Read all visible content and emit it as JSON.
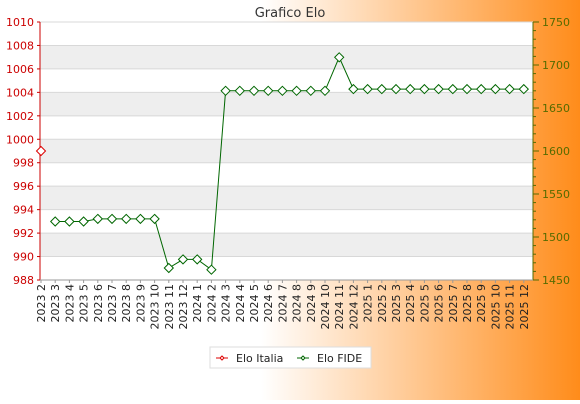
{
  "colors": {
    "bg_left": "#ffffff",
    "bg_right": "#ff8c1a",
    "band": "#eeeeee",
    "grid": "#d8d8d8",
    "left_axis": "#cc0000",
    "right_axis": "#556b00",
    "italia": "#dd0000",
    "fide": "#006600"
  },
  "chart_data": {
    "type": "line",
    "title": "Grafico Elo",
    "xlabel": "",
    "categories": [
      "2023 2",
      "2023 3",
      "2023 4",
      "2023 5",
      "2023 6",
      "2023 7",
      "2023 8",
      "2023 9",
      "2023 10",
      "2023 11",
      "2023 12",
      "2024 1",
      "2024 2",
      "2024 3",
      "2024 4",
      "2024 5",
      "2024 6",
      "2024 7",
      "2024 8",
      "2024 9",
      "2024 10",
      "2024 11",
      "2024 12",
      "2025 1",
      "2025 2",
      "2025 3",
      "2025 4",
      "2025 5",
      "2025 6",
      "2025 7",
      "2025 8",
      "2025 9",
      "2025 10",
      "2025 11",
      "2025 12"
    ],
    "ylim_left": [
      988,
      1010
    ],
    "yticks_left": [
      "988",
      "990",
      "992",
      "994",
      "996",
      "998",
      "1000",
      "1002",
      "1004",
      "1006",
      "1008",
      "1010"
    ],
    "ylim_right": [
      1450,
      1750
    ],
    "yticks_right": [
      "1450",
      "1500",
      "1550",
      "1600",
      "1650",
      "1700",
      "1750"
    ],
    "grid": true,
    "legend_position": "bottom",
    "series": [
      {
        "name": "Elo Italia",
        "axis": "left",
        "values": [
          999,
          null,
          null,
          null,
          null,
          null,
          null,
          null,
          null,
          null,
          null,
          null,
          null,
          null,
          null,
          null,
          null,
          null,
          null,
          null,
          null,
          null,
          null,
          null,
          null,
          null,
          null,
          null,
          null,
          null,
          null,
          null,
          null,
          null,
          null
        ]
      },
      {
        "name": "Elo FIDE",
        "axis": "right",
        "values": [
          null,
          1518,
          1518,
          1518,
          1521,
          1521,
          1521,
          1521,
          1521,
          1464,
          1474,
          1474,
          1462,
          1670,
          1670,
          1670,
          1670,
          1670,
          1670,
          1670,
          1670,
          1709,
          1672,
          1672,
          1672,
          1672,
          1672,
          1672,
          1672,
          1672,
          1672,
          1672,
          1672,
          1672,
          1672
        ]
      }
    ]
  }
}
